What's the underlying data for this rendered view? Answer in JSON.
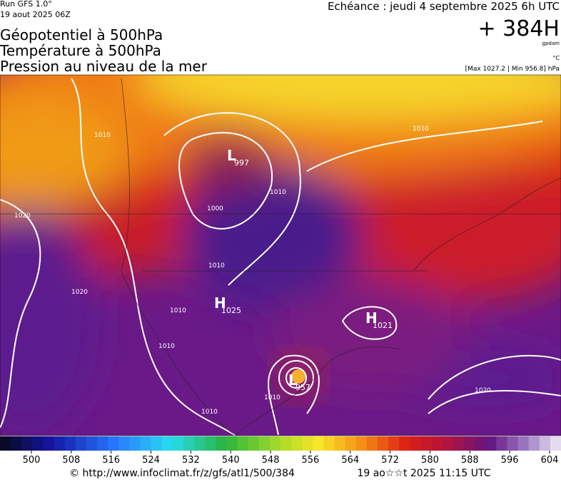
{
  "header": {
    "run": "Run GFS 1.0°",
    "run_date": "19 aout 2025 06Z",
    "valid": "Echéance : jeudi 4 septembre 2025 6h UTC",
    "lead": "+ 384H",
    "unit_gpdam": "gpdam",
    "unit_temp": "°C",
    "extremes": "[Max 1027.2 | Min 956.8] hPa",
    "titles": [
      "Géopotentiel à 500hPa",
      "Température à 500hPa",
      "Pression au niveau de la mer"
    ]
  },
  "map": {
    "centers": [
      {
        "letter": "L",
        "value": "997"
      },
      {
        "letter": "H",
        "value": "1025"
      },
      {
        "letter": "H",
        "value": "1021"
      },
      {
        "letter": "L",
        "value": "957"
      }
    ],
    "isobar_labels": [
      "1010",
      "1020",
      "1020",
      "1010",
      "1010",
      "1000",
      "1010",
      "1010",
      "1010",
      "1010",
      "1010",
      "1020"
    ]
  },
  "colorbar": {
    "ticks": [
      500,
      508,
      516,
      524,
      532,
      540,
      548,
      556,
      564,
      572,
      580,
      588,
      596,
      604
    ]
  },
  "footer": {
    "source": "© http://www.infoclimat.fr/z/gfs/atl1/500/384",
    "generated": "19 ao☆☆t 2025 11:15 UTC"
  }
}
